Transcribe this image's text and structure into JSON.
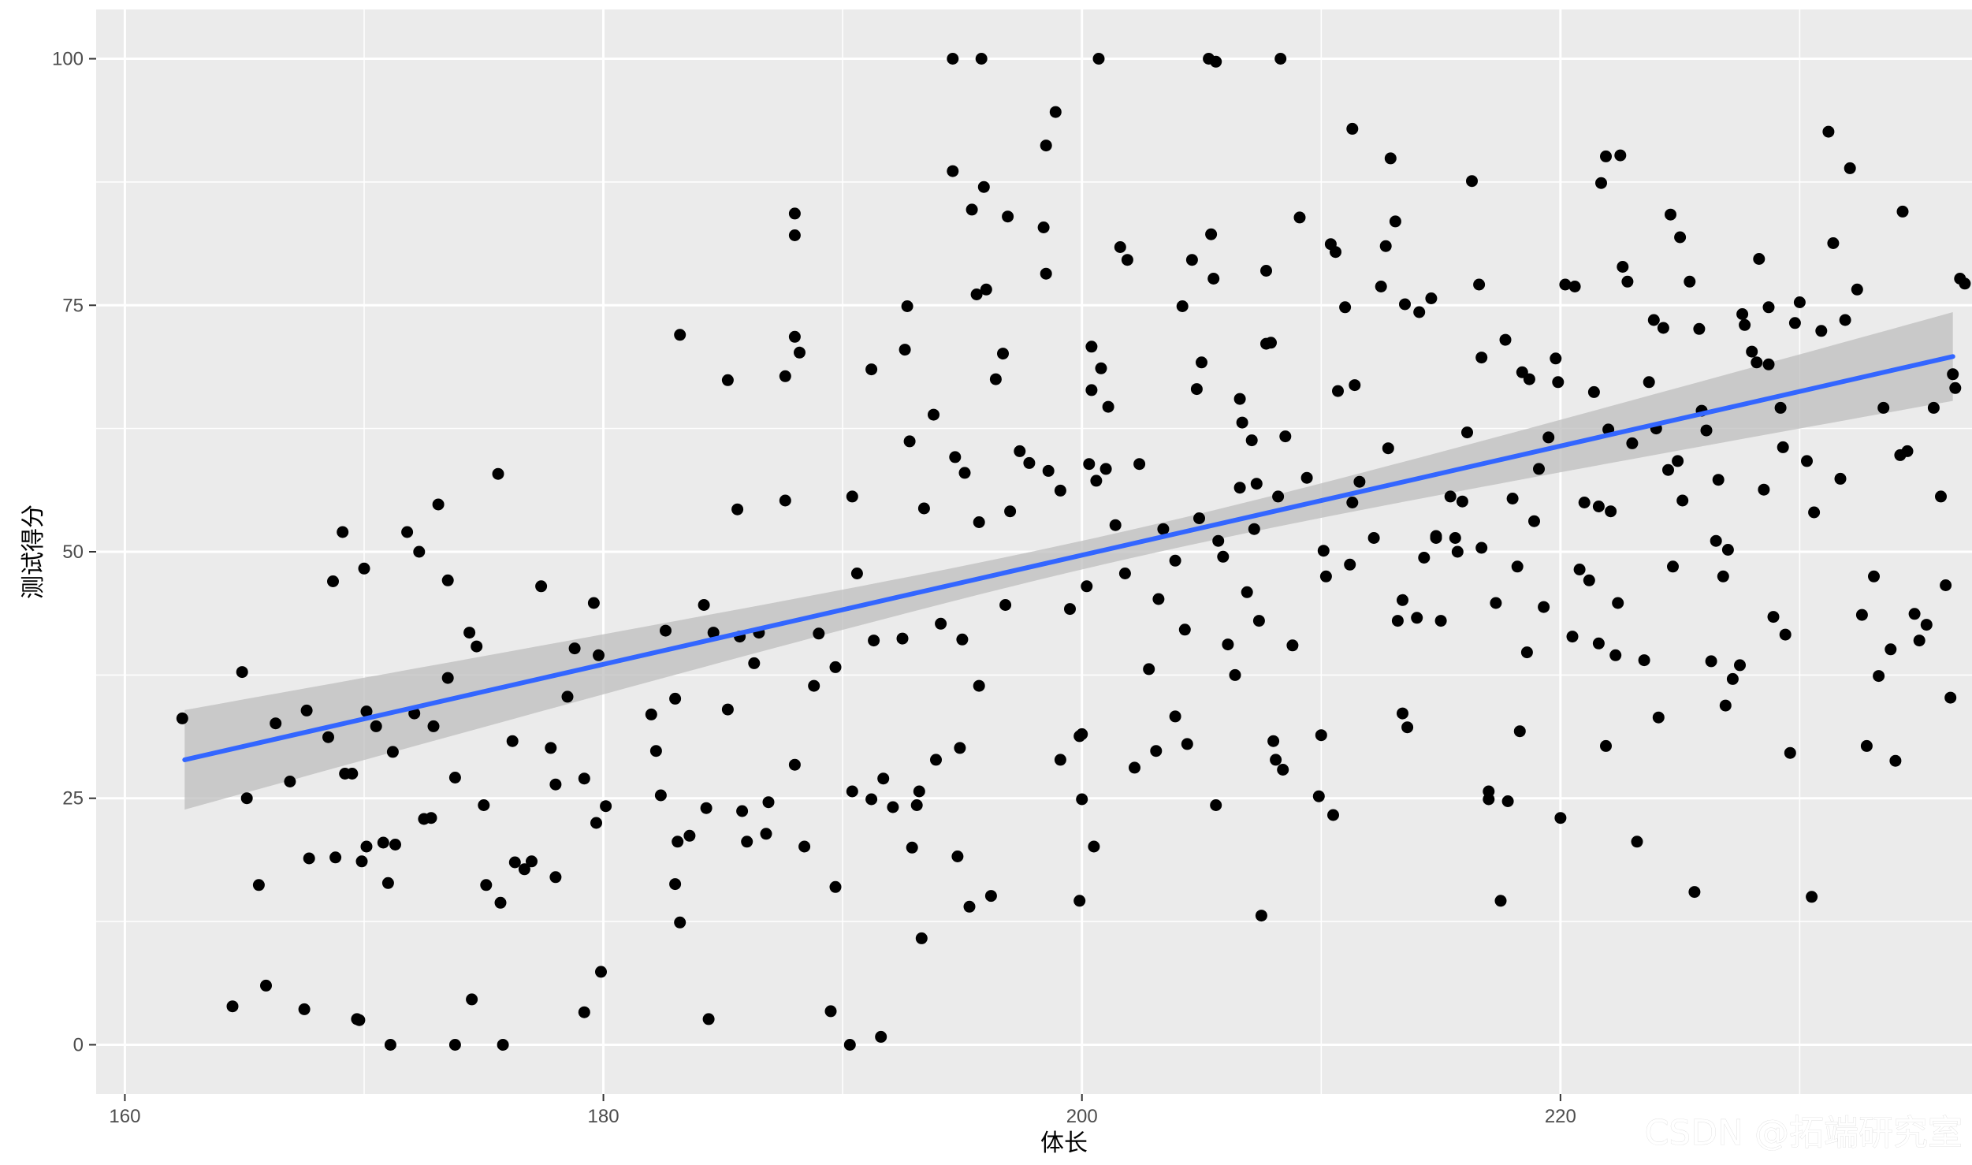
{
  "watermark": "CSDN @拓端研究室",
  "chart_data": {
    "type": "scatter",
    "xlabel": "体长",
    "ylabel": "测试得分",
    "xlim": [
      158.8,
      237.2
    ],
    "ylim": [
      -5,
      105
    ],
    "x_ticks": [
      160,
      180,
      200,
      220
    ],
    "y_ticks": [
      0,
      25,
      50,
      75,
      100
    ],
    "grid": true,
    "colors": {
      "panel": "#ebebeb",
      "grid": "#ffffff",
      "points": "#000000",
      "fit_line": "#3366ff",
      "band": "#bdbdbd"
    },
    "fit": {
      "method": "linear",
      "x": [
        162.5,
        236.4
      ],
      "y": [
        28.9,
        69.8
      ],
      "ci_lower": [
        23.8,
        65.3
      ],
      "ci_upper": [
        33.9,
        74.3
      ],
      "ci_mid_x": 200.0,
      "ci_mid_lower": 48.1,
      "ci_mid_upper": 51.0
    },
    "points": [
      [
        162.4,
        33.1
      ],
      [
        164.5,
        3.9
      ],
      [
        164.9,
        37.8
      ],
      [
        165.1,
        25.0
      ],
      [
        165.6,
        16.2
      ],
      [
        165.9,
        6.0
      ],
      [
        166.3,
        32.6
      ],
      [
        166.9,
        26.7
      ],
      [
        167.5,
        3.6
      ],
      [
        167.6,
        33.9
      ],
      [
        167.7,
        18.9
      ],
      [
        168.5,
        31.2
      ],
      [
        168.7,
        47.0
      ],
      [
        168.8,
        19.0
      ],
      [
        169.1,
        52.0
      ],
      [
        169.2,
        27.5
      ],
      [
        169.5,
        27.5
      ],
      [
        169.7,
        2.6
      ],
      [
        169.8,
        2.5
      ],
      [
        169.9,
        18.6
      ],
      [
        170.0,
        48.3
      ],
      [
        170.1,
        20.1
      ],
      [
        170.1,
        33.8
      ],
      [
        170.5,
        32.3
      ],
      [
        170.8,
        20.5
      ],
      [
        171.0,
        16.4
      ],
      [
        171.1,
        0.0
      ],
      [
        171.2,
        29.7
      ],
      [
        171.3,
        20.3
      ],
      [
        171.8,
        52.0
      ],
      [
        172.1,
        33.6
      ],
      [
        172.3,
        50.0
      ],
      [
        172.5,
        22.9
      ],
      [
        172.8,
        23.0
      ],
      [
        172.9,
        32.3
      ],
      [
        173.1,
        54.8
      ],
      [
        173.5,
        37.2
      ],
      [
        173.5,
        47.1
      ],
      [
        173.8,
        27.1
      ],
      [
        173.8,
        0.0
      ],
      [
        174.4,
        41.8
      ],
      [
        174.5,
        4.6
      ],
      [
        174.7,
        40.4
      ],
      [
        175.0,
        24.3
      ],
      [
        175.1,
        16.2
      ],
      [
        175.6,
        57.9
      ],
      [
        175.7,
        14.4
      ],
      [
        175.8,
        0.0
      ],
      [
        176.2,
        30.8
      ],
      [
        176.3,
        18.5
      ],
      [
        176.7,
        17.8
      ],
      [
        177.0,
        18.6
      ],
      [
        177.4,
        46.5
      ],
      [
        177.8,
        30.1
      ],
      [
        178.0,
        26.4
      ],
      [
        178.0,
        17.0
      ],
      [
        178.5,
        35.3
      ],
      [
        178.8,
        40.2
      ],
      [
        179.2,
        3.3
      ],
      [
        179.2,
        27.0
      ],
      [
        179.6,
        44.8
      ],
      [
        179.7,
        22.5
      ],
      [
        179.8,
        39.5
      ],
      [
        179.9,
        7.4
      ],
      [
        180.1,
        24.2
      ],
      [
        182.0,
        33.5
      ],
      [
        182.2,
        29.8
      ],
      [
        182.4,
        25.3
      ],
      [
        182.6,
        42.0
      ],
      [
        183.0,
        35.1
      ],
      [
        183.0,
        16.3
      ],
      [
        183.1,
        20.6
      ],
      [
        183.2,
        72.0
      ],
      [
        183.2,
        12.4
      ],
      [
        183.6,
        21.2
      ],
      [
        184.2,
        44.6
      ],
      [
        184.3,
        24.0
      ],
      [
        184.4,
        2.6
      ],
      [
        184.6,
        41.8
      ],
      [
        185.2,
        67.4
      ],
      [
        185.2,
        34.0
      ],
      [
        185.6,
        54.3
      ],
      [
        185.7,
        41.4
      ],
      [
        185.8,
        23.7
      ],
      [
        186.0,
        20.6
      ],
      [
        186.3,
        38.7
      ],
      [
        186.5,
        41.8
      ],
      [
        186.8,
        21.4
      ],
      [
        186.9,
        24.6
      ],
      [
        187.6,
        55.2
      ],
      [
        187.6,
        67.8
      ],
      [
        188.0,
        84.3
      ],
      [
        188.0,
        82.1
      ],
      [
        188.0,
        71.8
      ],
      [
        188.0,
        28.4
      ],
      [
        188.2,
        70.2
      ],
      [
        188.4,
        20.1
      ],
      [
        188.8,
        36.4
      ],
      [
        189.0,
        41.7
      ],
      [
        189.5,
        3.4
      ],
      [
        189.7,
        16.0
      ],
      [
        189.7,
        38.3
      ],
      [
        190.3,
        0.0
      ],
      [
        190.4,
        25.7
      ],
      [
        190.4,
        55.6
      ],
      [
        190.6,
        47.8
      ],
      [
        191.2,
        68.5
      ],
      [
        191.2,
        24.9
      ],
      [
        191.3,
        41.0
      ],
      [
        191.6,
        0.8
      ],
      [
        191.7,
        27.0
      ],
      [
        192.1,
        24.1
      ],
      [
        192.5,
        41.2
      ],
      [
        192.6,
        70.5
      ],
      [
        192.7,
        74.9
      ],
      [
        192.8,
        61.2
      ],
      [
        192.9,
        20.0
      ],
      [
        193.1,
        24.3
      ],
      [
        193.2,
        25.7
      ],
      [
        193.3,
        10.8
      ],
      [
        193.4,
        54.4
      ],
      [
        193.8,
        63.9
      ],
      [
        193.9,
        28.9
      ],
      [
        194.1,
        42.7
      ],
      [
        194.6,
        100.0
      ],
      [
        194.6,
        88.6
      ],
      [
        194.7,
        59.6
      ],
      [
        194.8,
        19.1
      ],
      [
        194.9,
        30.1
      ],
      [
        195.0,
        41.1
      ],
      [
        195.1,
        58.0
      ],
      [
        195.3,
        14.0
      ],
      [
        195.4,
        84.7
      ],
      [
        195.6,
        76.1
      ],
      [
        195.7,
        36.4
      ],
      [
        195.7,
        53.0
      ],
      [
        195.8,
        100.0
      ],
      [
        195.9,
        87.0
      ],
      [
        196.0,
        76.6
      ],
      [
        196.2,
        15.1
      ],
      [
        196.4,
        67.5
      ],
      [
        196.7,
        70.1
      ],
      [
        196.8,
        44.6
      ],
      [
        196.9,
        84.0
      ],
      [
        197.0,
        54.1
      ],
      [
        197.4,
        60.2
      ],
      [
        197.8,
        59.0
      ],
      [
        198.4,
        82.9
      ],
      [
        198.5,
        78.2
      ],
      [
        198.5,
        91.2
      ],
      [
        198.6,
        58.2
      ],
      [
        198.9,
        94.6
      ],
      [
        199.1,
        56.2
      ],
      [
        199.1,
        28.9
      ],
      [
        199.5,
        44.2
      ],
      [
        199.9,
        14.6
      ],
      [
        199.9,
        31.3
      ],
      [
        200.0,
        24.9
      ],
      [
        200.0,
        31.5
      ],
      [
        200.2,
        46.5
      ],
      [
        200.3,
        58.9
      ],
      [
        200.4,
        70.8
      ],
      [
        200.4,
        66.4
      ],
      [
        200.5,
        20.1
      ],
      [
        200.6,
        57.2
      ],
      [
        200.7,
        100.0
      ],
      [
        200.8,
        68.6
      ],
      [
        201.0,
        58.4
      ],
      [
        201.1,
        64.7
      ],
      [
        201.4,
        52.7
      ],
      [
        201.6,
        80.9
      ],
      [
        201.8,
        47.8
      ],
      [
        201.9,
        79.6
      ],
      [
        202.2,
        28.1
      ],
      [
        202.4,
        58.9
      ],
      [
        202.8,
        38.1
      ],
      [
        203.1,
        29.8
      ],
      [
        203.2,
        45.2
      ],
      [
        203.4,
        52.3
      ],
      [
        203.9,
        49.1
      ],
      [
        203.9,
        33.3
      ],
      [
        204.2,
        74.9
      ],
      [
        204.3,
        42.1
      ],
      [
        204.4,
        30.5
      ],
      [
        204.6,
        79.6
      ],
      [
        204.8,
        66.5
      ],
      [
        204.9,
        53.4
      ],
      [
        205.0,
        69.2
      ],
      [
        205.3,
        100.0
      ],
      [
        205.4,
        82.2
      ],
      [
        205.5,
        77.7
      ],
      [
        205.6,
        99.7
      ],
      [
        205.6,
        24.3
      ],
      [
        205.7,
        51.1
      ],
      [
        205.9,
        49.5
      ],
      [
        206.1,
        40.6
      ],
      [
        206.4,
        37.5
      ],
      [
        206.6,
        65.5
      ],
      [
        206.6,
        56.5
      ],
      [
        206.7,
        63.1
      ],
      [
        206.9,
        45.9
      ],
      [
        207.1,
        61.3
      ],
      [
        207.2,
        52.3
      ],
      [
        207.3,
        56.9
      ],
      [
        207.4,
        43.0
      ],
      [
        207.5,
        13.1
      ],
      [
        207.7,
        78.5
      ],
      [
        207.7,
        71.1
      ],
      [
        207.9,
        71.2
      ],
      [
        208.0,
        30.8
      ],
      [
        208.1,
        28.9
      ],
      [
        208.2,
        55.6
      ],
      [
        208.3,
        100.0
      ],
      [
        208.4,
        27.9
      ],
      [
        208.5,
        61.7
      ],
      [
        208.8,
        40.5
      ],
      [
        209.1,
        83.9
      ],
      [
        209.4,
        57.5
      ],
      [
        209.9,
        25.2
      ],
      [
        210.0,
        31.4
      ],
      [
        210.1,
        50.1
      ],
      [
        210.2,
        47.5
      ],
      [
        210.4,
        81.2
      ],
      [
        210.5,
        23.3
      ],
      [
        210.6,
        80.4
      ],
      [
        210.7,
        66.3
      ],
      [
        211.0,
        74.8
      ],
      [
        211.2,
        48.7
      ],
      [
        211.3,
        92.9
      ],
      [
        211.3,
        55.0
      ],
      [
        211.4,
        66.9
      ],
      [
        211.6,
        57.1
      ],
      [
        212.2,
        51.4
      ],
      [
        212.5,
        76.9
      ],
      [
        212.7,
        81.0
      ],
      [
        212.8,
        60.5
      ],
      [
        212.9,
        89.9
      ],
      [
        213.1,
        83.5
      ],
      [
        213.2,
        43.0
      ],
      [
        213.4,
        45.1
      ],
      [
        213.4,
        33.6
      ],
      [
        213.5,
        75.1
      ],
      [
        213.6,
        32.2
      ],
      [
        214.0,
        43.3
      ],
      [
        214.1,
        74.3
      ],
      [
        214.3,
        49.4
      ],
      [
        214.6,
        75.7
      ],
      [
        214.8,
        51.4
      ],
      [
        214.8,
        51.6
      ],
      [
        215.0,
        43.0
      ],
      [
        215.4,
        55.6
      ],
      [
        215.6,
        51.4
      ],
      [
        215.7,
        50.0
      ],
      [
        215.9,
        55.1
      ],
      [
        216.1,
        62.1
      ],
      [
        216.3,
        87.6
      ],
      [
        216.6,
        77.1
      ],
      [
        216.7,
        69.7
      ],
      [
        216.7,
        50.4
      ],
      [
        217.0,
        24.9
      ],
      [
        217.0,
        25.7
      ],
      [
        217.3,
        44.8
      ],
      [
        217.5,
        14.6
      ],
      [
        217.7,
        71.5
      ],
      [
        217.8,
        24.7
      ],
      [
        218.0,
        55.4
      ],
      [
        218.2,
        48.5
      ],
      [
        218.3,
        31.8
      ],
      [
        218.4,
        68.2
      ],
      [
        218.6,
        39.8
      ],
      [
        218.7,
        67.5
      ],
      [
        218.9,
        53.1
      ],
      [
        219.1,
        58.4
      ],
      [
        219.3,
        44.4
      ],
      [
        219.5,
        61.6
      ],
      [
        219.8,
        69.6
      ],
      [
        219.9,
        67.2
      ],
      [
        220.0,
        23.0
      ],
      [
        220.2,
        77.1
      ],
      [
        220.5,
        41.4
      ],
      [
        220.6,
        76.9
      ],
      [
        220.8,
        48.2
      ],
      [
        221.0,
        55.0
      ],
      [
        221.2,
        47.1
      ],
      [
        221.4,
        66.2
      ],
      [
        221.6,
        40.7
      ],
      [
        221.6,
        54.6
      ],
      [
        221.7,
        87.4
      ],
      [
        221.9,
        90.1
      ],
      [
        221.9,
        30.3
      ],
      [
        222.0,
        62.4
      ],
      [
        222.1,
        54.1
      ],
      [
        222.3,
        39.5
      ],
      [
        222.4,
        44.8
      ],
      [
        222.5,
        90.2
      ],
      [
        222.6,
        78.9
      ],
      [
        222.8,
        77.4
      ],
      [
        223.0,
        61.0
      ],
      [
        223.2,
        20.6
      ],
      [
        223.5,
        39.0
      ],
      [
        223.7,
        67.2
      ],
      [
        223.9,
        73.5
      ],
      [
        224.0,
        62.5
      ],
      [
        224.1,
        33.2
      ],
      [
        224.3,
        72.7
      ],
      [
        224.5,
        58.3
      ],
      [
        224.6,
        84.2
      ],
      [
        224.7,
        48.5
      ],
      [
        224.9,
        59.2
      ],
      [
        225.0,
        81.9
      ],
      [
        225.1,
        55.2
      ],
      [
        225.4,
        77.4
      ],
      [
        225.6,
        15.5
      ],
      [
        225.8,
        72.6
      ],
      [
        225.9,
        64.3
      ],
      [
        226.1,
        62.3
      ],
      [
        226.3,
        38.9
      ],
      [
        226.5,
        51.1
      ],
      [
        226.6,
        57.3
      ],
      [
        226.8,
        47.5
      ],
      [
        226.9,
        34.4
      ],
      [
        227.0,
        50.2
      ],
      [
        227.2,
        37.1
      ],
      [
        227.5,
        38.5
      ],
      [
        227.6,
        74.1
      ],
      [
        227.7,
        73.0
      ],
      [
        228.0,
        70.3
      ],
      [
        228.2,
        69.2
      ],
      [
        228.3,
        79.7
      ],
      [
        228.5,
        56.3
      ],
      [
        228.7,
        74.8
      ],
      [
        228.7,
        69.0
      ],
      [
        228.9,
        43.4
      ],
      [
        229.2,
        64.6
      ],
      [
        229.3,
        60.6
      ],
      [
        229.4,
        41.6
      ],
      [
        229.6,
        29.6
      ],
      [
        229.8,
        73.2
      ],
      [
        230.0,
        75.3
      ],
      [
        230.3,
        59.2
      ],
      [
        230.5,
        15.0
      ],
      [
        230.6,
        54.0
      ],
      [
        230.9,
        72.4
      ],
      [
        231.2,
        92.6
      ],
      [
        231.4,
        81.3
      ],
      [
        231.7,
        57.4
      ],
      [
        231.9,
        73.5
      ],
      [
        232.1,
        88.9
      ],
      [
        232.4,
        76.6
      ],
      [
        232.6,
        43.6
      ],
      [
        232.8,
        30.3
      ],
      [
        233.1,
        47.5
      ],
      [
        233.3,
        37.4
      ],
      [
        233.5,
        64.6
      ],
      [
        233.8,
        40.1
      ],
      [
        234.0,
        28.8
      ],
      [
        234.2,
        59.8
      ],
      [
        234.3,
        84.5
      ],
      [
        234.5,
        60.2
      ],
      [
        234.8,
        43.7
      ],
      [
        235.0,
        41.0
      ],
      [
        235.3,
        42.6
      ],
      [
        235.6,
        64.6
      ],
      [
        235.9,
        55.6
      ],
      [
        236.1,
        46.6
      ],
      [
        236.3,
        35.2
      ],
      [
        236.4,
        68.0
      ],
      [
        236.5,
        66.6
      ],
      [
        236.7,
        77.7
      ],
      [
        236.9,
        77.2
      ]
    ]
  }
}
